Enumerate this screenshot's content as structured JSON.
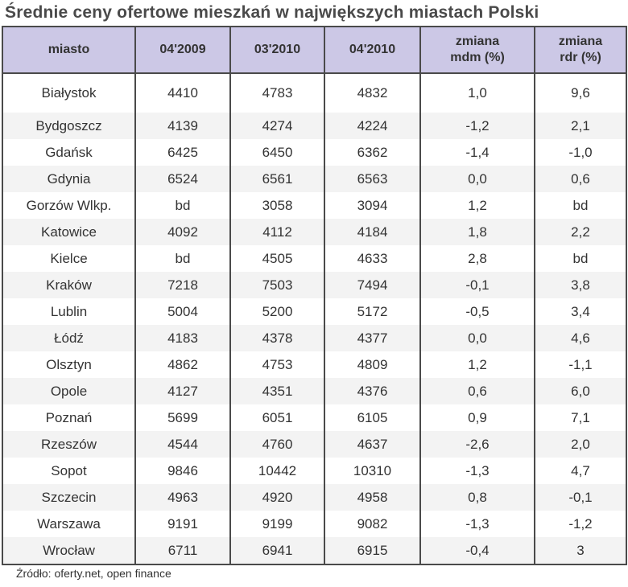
{
  "title": "Średnie ceny ofertowe mieszkań w największych miastach Polski",
  "headers": [
    "miasto",
    "04'2009",
    "03'2010",
    "04'2010",
    "zmiana\nmdm (%)",
    "zmiana\nrdr (%)"
  ],
  "rows": [
    [
      "Białystok",
      "4410",
      "4783",
      "4832",
      "1,0",
      "9,6"
    ],
    [
      "Bydgoszcz",
      "4139",
      "4274",
      "4224",
      "-1,2",
      "2,1"
    ],
    [
      "Gdańsk",
      "6425",
      "6450",
      "6362",
      "-1,4",
      "-1,0"
    ],
    [
      "Gdynia",
      "6524",
      "6561",
      "6563",
      "0,0",
      "0,6"
    ],
    [
      "Gorzów Wlkp.",
      "bd",
      "3058",
      "3094",
      "1,2",
      "bd"
    ],
    [
      "Katowice",
      "4092",
      "4112",
      "4184",
      "1,8",
      "2,2"
    ],
    [
      "Kielce",
      "bd",
      "4505",
      "4633",
      "2,8",
      "bd"
    ],
    [
      "Kraków",
      "7218",
      "7503",
      "7494",
      "-0,1",
      "3,8"
    ],
    [
      "Lublin",
      "5004",
      "5200",
      "5172",
      "-0,5",
      "3,4"
    ],
    [
      "Łódź",
      "4183",
      "4378",
      "4377",
      "0,0",
      "4,6"
    ],
    [
      "Olsztyn",
      "4862",
      "4753",
      "4809",
      "1,2",
      "-1,1"
    ],
    [
      "Opole",
      "4127",
      "4351",
      "4376",
      "0,6",
      "6,0"
    ],
    [
      "Poznań",
      "5699",
      "6051",
      "6105",
      "0,9",
      "7,1"
    ],
    [
      "Rzeszów",
      "4544",
      "4760",
      "4637",
      "-2,6",
      "2,0"
    ],
    [
      "Sopot",
      "9846",
      "10442",
      "10310",
      "-1,3",
      "4,7"
    ],
    [
      "Szczecin",
      "4963",
      "4920",
      "4958",
      "0,8",
      "-0,1"
    ],
    [
      "Warszawa",
      "9191",
      "9199",
      "9082",
      "-1,3",
      "-1,2"
    ],
    [
      "Wrocław",
      "6711",
      "6941",
      "6915",
      "-0,4",
      "3"
    ]
  ],
  "source": "Źródło: oferty.net, open finance"
}
